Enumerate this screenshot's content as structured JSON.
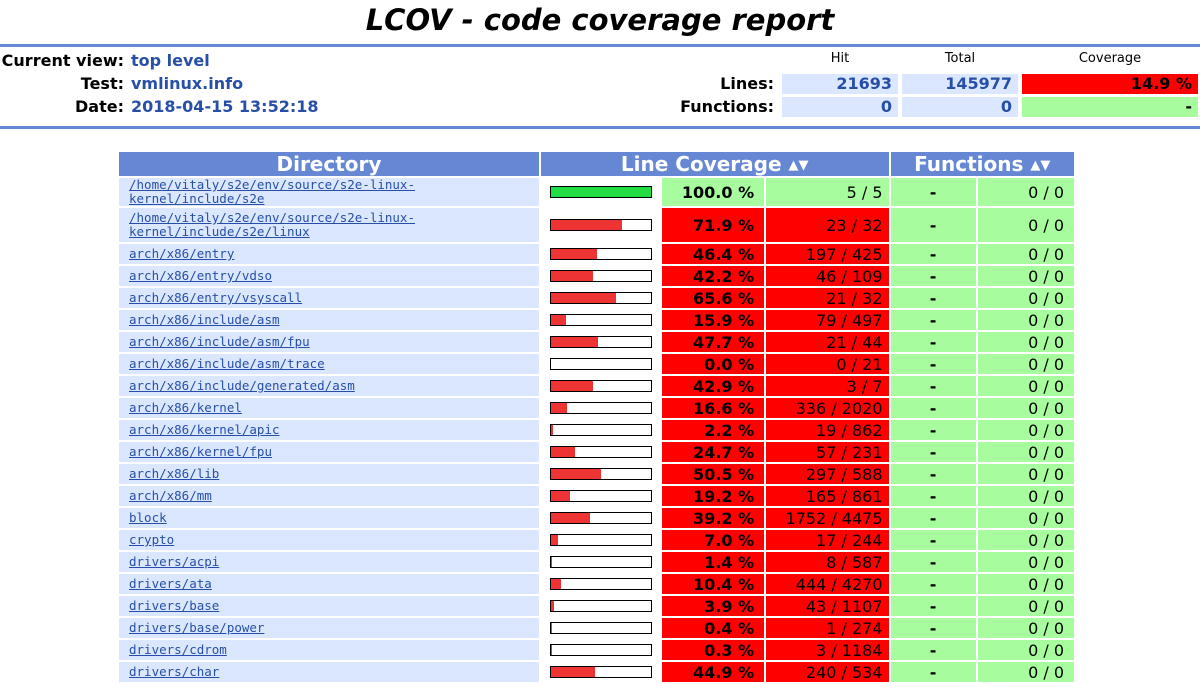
{
  "title": "LCOV - code coverage report",
  "info": {
    "current_view_label": "Current view:",
    "current_view_value": "top level",
    "test_label": "Test:",
    "test_value": "vmlinux.info",
    "date_label": "Date:",
    "date_value": "2018-04-15 13:52:18"
  },
  "summary": {
    "headers": {
      "hit": "Hit",
      "total": "Total",
      "coverage": "Coverage"
    },
    "lines": {
      "label": "Lines:",
      "hit": "21693",
      "total": "145977",
      "coverage": "14.9 %"
    },
    "functions": {
      "label": "Functions:",
      "hit": "0",
      "total": "0",
      "coverage": "-"
    }
  },
  "table": {
    "headers": {
      "directory": "Directory",
      "line_coverage": "Line Coverage",
      "functions": "Functions",
      "sort_icon": "sort-arrows-icon"
    },
    "rows": [
      {
        "name": "/home/vitaly/s2e/env/source/s2e-linux-kernel/include/s2e",
        "pct": "100.0 %",
        "fraction": 1.0,
        "count": "5 / 5",
        "fpct": "-",
        "fcount": "0 / 0",
        "level": "hi"
      },
      {
        "name": "/home/vitaly/s2e/env/source/s2e-linux-kernel/include/s2e/linux",
        "pct": "71.9 %",
        "fraction": 0.719,
        "count": "23 / 32",
        "fpct": "-",
        "fcount": "0 / 0",
        "level": "lo"
      },
      {
        "name": "arch/x86/entry",
        "pct": "46.4 %",
        "fraction": 0.464,
        "count": "197 / 425",
        "fpct": "-",
        "fcount": "0 / 0",
        "level": "lo"
      },
      {
        "name": "arch/x86/entry/vdso",
        "pct": "42.2 %",
        "fraction": 0.422,
        "count": "46 / 109",
        "fpct": "-",
        "fcount": "0 / 0",
        "level": "lo"
      },
      {
        "name": "arch/x86/entry/vsyscall",
        "pct": "65.6 %",
        "fraction": 0.656,
        "count": "21 / 32",
        "fpct": "-",
        "fcount": "0 / 0",
        "level": "lo"
      },
      {
        "name": "arch/x86/include/asm",
        "pct": "15.9 %",
        "fraction": 0.159,
        "count": "79 / 497",
        "fpct": "-",
        "fcount": "0 / 0",
        "level": "lo"
      },
      {
        "name": "arch/x86/include/asm/fpu",
        "pct": "47.7 %",
        "fraction": 0.477,
        "count": "21 / 44",
        "fpct": "-",
        "fcount": "0 / 0",
        "level": "lo"
      },
      {
        "name": "arch/x86/include/asm/trace",
        "pct": "0.0 %",
        "fraction": 0.0,
        "count": "0 / 21",
        "fpct": "-",
        "fcount": "0 / 0",
        "level": "lo"
      },
      {
        "name": "arch/x86/include/generated/asm",
        "pct": "42.9 %",
        "fraction": 0.429,
        "count": "3 / 7",
        "fpct": "-",
        "fcount": "0 / 0",
        "level": "lo"
      },
      {
        "name": "arch/x86/kernel",
        "pct": "16.6 %",
        "fraction": 0.166,
        "count": "336 / 2020",
        "fpct": "-",
        "fcount": "0 / 0",
        "level": "lo"
      },
      {
        "name": "arch/x86/kernel/apic",
        "pct": "2.2 %",
        "fraction": 0.022,
        "count": "19 / 862",
        "fpct": "-",
        "fcount": "0 / 0",
        "level": "lo"
      },
      {
        "name": "arch/x86/kernel/fpu",
        "pct": "24.7 %",
        "fraction": 0.247,
        "count": "57 / 231",
        "fpct": "-",
        "fcount": "0 / 0",
        "level": "lo"
      },
      {
        "name": "arch/x86/lib",
        "pct": "50.5 %",
        "fraction": 0.505,
        "count": "297 / 588",
        "fpct": "-",
        "fcount": "0 / 0",
        "level": "lo"
      },
      {
        "name": "arch/x86/mm",
        "pct": "19.2 %",
        "fraction": 0.192,
        "count": "165 / 861",
        "fpct": "-",
        "fcount": "0 / 0",
        "level": "lo"
      },
      {
        "name": "block",
        "pct": "39.2 %",
        "fraction": 0.392,
        "count": "1752 / 4475",
        "fpct": "-",
        "fcount": "0 / 0",
        "level": "lo"
      },
      {
        "name": "crypto",
        "pct": "7.0 %",
        "fraction": 0.07,
        "count": "17 / 244",
        "fpct": "-",
        "fcount": "0 / 0",
        "level": "lo"
      },
      {
        "name": "drivers/acpi",
        "pct": "1.4 %",
        "fraction": 0.014,
        "count": "8 / 587",
        "fpct": "-",
        "fcount": "0 / 0",
        "level": "lo"
      },
      {
        "name": "drivers/ata",
        "pct": "10.4 %",
        "fraction": 0.104,
        "count": "444 / 4270",
        "fpct": "-",
        "fcount": "0 / 0",
        "level": "lo"
      },
      {
        "name": "drivers/base",
        "pct": "3.9 %",
        "fraction": 0.039,
        "count": "43 / 1107",
        "fpct": "-",
        "fcount": "0 / 0",
        "level": "lo"
      },
      {
        "name": "drivers/base/power",
        "pct": "0.4 %",
        "fraction": 0.004,
        "count": "1 / 274",
        "fpct": "-",
        "fcount": "0 / 0",
        "level": "lo"
      },
      {
        "name": "drivers/cdrom",
        "pct": "0.3 %",
        "fraction": 0.003,
        "count": "3 / 1184",
        "fpct": "-",
        "fcount": "0 / 0",
        "level": "lo"
      },
      {
        "name": "drivers/char",
        "pct": "44.9 %",
        "fraction": 0.449,
        "count": "240 / 534",
        "fpct": "-",
        "fcount": "0 / 0",
        "level": "lo"
      }
    ]
  },
  "colors": {
    "header_blue": "#6688d4",
    "link_blue": "#284fa8",
    "row_bg": "#dae7fe",
    "low": "#ff0000",
    "high": "#a7fc9d",
    "bar_low": "#ee3333",
    "bar_high": "#22dd44"
  }
}
